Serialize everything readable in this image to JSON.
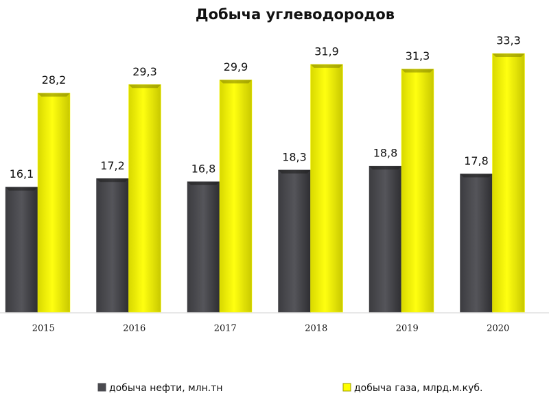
{
  "chart_data": {
    "type": "bar",
    "title": "Добыча углеводородов",
    "categories": [
      "2015",
      "2016",
      "2017",
      "2018",
      "2019",
      "2020"
    ],
    "series": [
      {
        "name": "добыча нефти, млн.тн",
        "color": "#4a4a4f",
        "values": [
          16.1,
          17.2,
          16.8,
          18.3,
          18.8,
          17.8
        ],
        "value_labels": [
          "16,1",
          "17,2",
          "16,8",
          "18,3",
          "18,8",
          "17,8"
        ]
      },
      {
        "name": "добыча газа, млрд.м.куб.",
        "color": "#ffff00",
        "values": [
          28.2,
          29.3,
          29.9,
          31.9,
          31.3,
          33.3
        ],
        "value_labels": [
          "28,2",
          "29,3",
          "29,9",
          "31,9",
          "31,3",
          "33,3"
        ]
      }
    ]
  }
}
